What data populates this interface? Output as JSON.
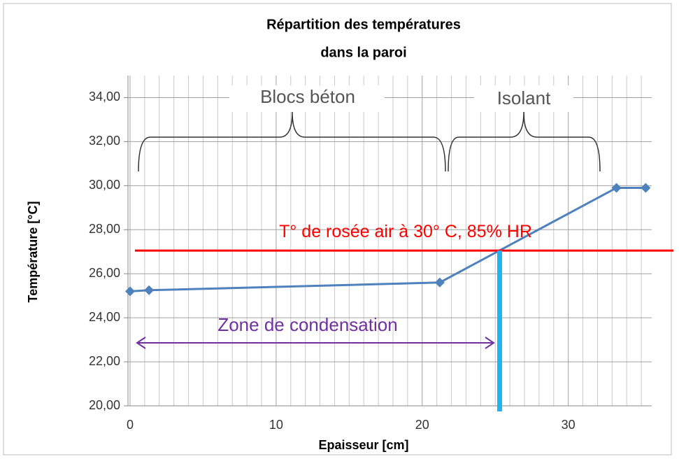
{
  "chart_data": {
    "type": "line",
    "title": "Répartition des températures",
    "subtitle": "dans la paroi",
    "x_label": "Epaisseur [cm]",
    "y_label": "Température [°C]",
    "series": [
      {
        "name": "Température",
        "color": "#4f81bd",
        "x": [
          0,
          1.3,
          21.2,
          33.3,
          35.3
        ],
        "values": [
          25.2,
          25.25,
          25.6,
          29.9,
          29.9
        ]
      }
    ],
    "xlim": [
      0,
      36
    ],
    "xticks": [
      0,
      10,
      20,
      30
    ],
    "xminorticks": [
      1,
      2,
      3,
      4,
      5,
      6,
      7,
      8,
      9,
      11,
      12,
      13,
      14,
      15,
      16,
      17,
      18,
      19,
      21,
      22,
      23,
      24,
      25,
      26,
      27,
      28,
      29,
      31,
      32,
      33,
      34,
      35
    ],
    "ylim": [
      20,
      35
    ],
    "yticks": [
      {
        "value": 20,
        "label": "20,00"
      },
      {
        "value": 22,
        "label": "22,00"
      },
      {
        "value": 24,
        "label": "24,00"
      },
      {
        "value": 26,
        "label": "26,00"
      },
      {
        "value": 28,
        "label": "28,00"
      },
      {
        "value": 30,
        "label": "30,00"
      },
      {
        "value": 32,
        "label": "32,00"
      },
      {
        "value": 34,
        "label": "34,00"
      }
    ],
    "grid": true,
    "reference_line": {
      "label": "T°  de rosée air à 30° C, 85% HR",
      "y": 27.05,
      "color": "#ff0000"
    },
    "condensation_line": {
      "x": 25.3,
      "color": "#1fb4f0"
    },
    "annotations": [
      "Blocs béton",
      "Isolant",
      "Zone de condensation"
    ]
  }
}
